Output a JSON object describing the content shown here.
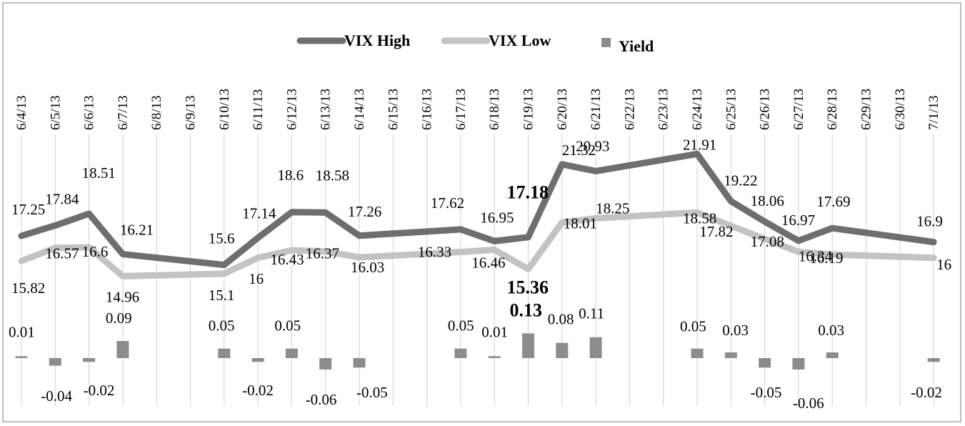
{
  "chart_data": {
    "type": "line+bar",
    "categories": [
      "6/4/13",
      "6/5/13",
      "6/6/13",
      "6/7/13",
      "6/8/13",
      "6/9/13",
      "6/10/13",
      "6/11/13",
      "6/12/13",
      "6/13/13",
      "6/14/13",
      "6/15/13",
      "6/16/13",
      "6/17/13",
      "6/18/13",
      "6/19/13",
      "6/20/13",
      "6/21/13",
      "6/22/13",
      "6/23/13",
      "6/24/13",
      "6/25/13",
      "6/26/13",
      "6/27/13",
      "6/28/13",
      "6/29/13",
      "6/30/13",
      "7/1/13"
    ],
    "series": [
      {
        "name": "VIX High",
        "type": "line",
        "color": "#6e6e6e",
        "values": [
          17.25,
          17.84,
          18.51,
          16.21,
          null,
          null,
          15.6,
          17.14,
          18.6,
          18.58,
          17.26,
          null,
          null,
          17.62,
          16.95,
          17.18,
          21.32,
          20.93,
          null,
          null,
          21.91,
          19.22,
          18.06,
          16.97,
          17.69,
          null,
          null,
          16.9
        ],
        "labels": [
          "17.25",
          "17.84",
          "18.51",
          "16.21",
          null,
          null,
          "15.6",
          "17.14",
          "18.6",
          "18.58",
          "17.26",
          null,
          null,
          "17.62",
          "16.95",
          "17.18",
          "21.32",
          "20.93",
          null,
          null,
          "21.91",
          "19.22",
          "18.06",
          "16.97",
          "17.69",
          null,
          null,
          "16.9"
        ]
      },
      {
        "name": "VIX Low",
        "type": "line",
        "color": "#c3c3c3",
        "values": [
          15.82,
          16.57,
          16.6,
          14.96,
          null,
          null,
          15.1,
          16,
          16.43,
          16.37,
          16.03,
          null,
          null,
          16.33,
          16.46,
          15.36,
          18.01,
          18.25,
          null,
          null,
          18.58,
          17.82,
          17.08,
          16.34,
          16.19,
          null,
          null,
          16
        ],
        "labels": [
          "15.82",
          "16.57",
          "16.6",
          "14.96",
          null,
          null,
          "15.1",
          "16",
          "16.43",
          "16.37",
          "16.03",
          null,
          null,
          "16.33",
          "16.46",
          "15.36",
          "18.01",
          "18.25",
          null,
          null,
          "18.58",
          "17.82",
          "17.08",
          "16.34",
          "16.19",
          null,
          null,
          "16"
        ]
      },
      {
        "name": "Yield",
        "type": "bar",
        "color": "#8c8c8c",
        "values": [
          0.01,
          -0.04,
          -0.02,
          0.09,
          null,
          null,
          0.05,
          -0.02,
          0.05,
          -0.06,
          -0.05,
          null,
          null,
          0.05,
          0.01,
          0.13,
          0.08,
          0.11,
          null,
          null,
          0.05,
          0.03,
          -0.05,
          -0.06,
          0.03,
          null,
          null,
          -0.02
        ],
        "labels": [
          "0.01",
          "-0.04",
          "-0.02",
          "0.09",
          null,
          null,
          "0.05",
          "-0.02",
          "0.05",
          "-0.06",
          "-0.05",
          null,
          null,
          "0.05",
          "0.01",
          "0.13",
          "0.08",
          "0.11",
          null,
          null,
          "0.05",
          "0.03",
          "-0.05",
          "-0.06",
          "0.03",
          null,
          null,
          "-0.02"
        ]
      }
    ],
    "highlighted_labels": [
      "17.18",
      "15.36",
      "0.13"
    ],
    "legend": {
      "position": "top-center"
    },
    "grid": {
      "vertical": true,
      "horizontal": false
    }
  }
}
